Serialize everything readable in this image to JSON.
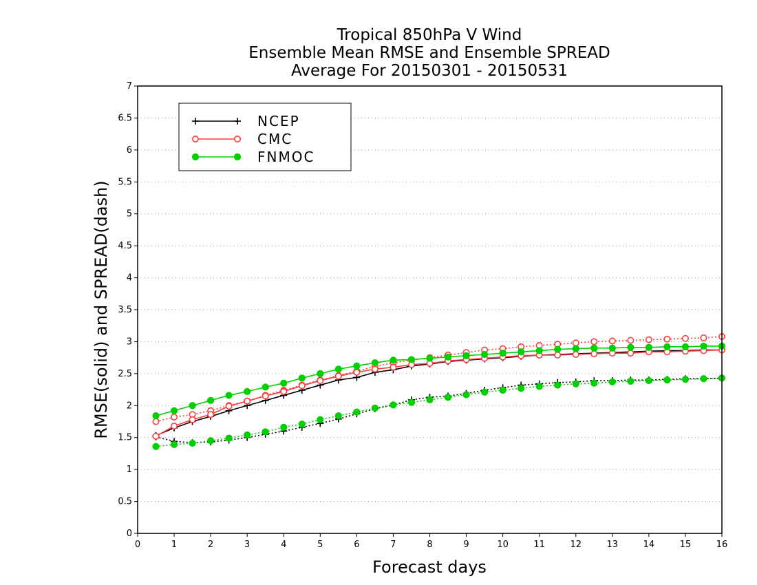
{
  "chart_data": {
    "type": "line",
    "title_lines": [
      "Tropical 850hPa V Wind",
      "Ensemble Mean RMSE and Ensemble SPREAD",
      "Average For 20150301 - 20150531"
    ],
    "xlabel": "Forecast days",
    "ylabel": "RMSE(solid) and SPREAD(dash)",
    "xlim": [
      0,
      16
    ],
    "ylim": [
      0,
      7
    ],
    "x_ticks": [
      0,
      1,
      2,
      3,
      4,
      5,
      6,
      7,
      8,
      9,
      10,
      11,
      12,
      13,
      14,
      15,
      16
    ],
    "y_ticks": [
      0,
      0.5,
      1,
      1.5,
      2,
      2.5,
      3,
      3.5,
      4,
      4.5,
      5,
      5.5,
      6,
      6.5,
      7
    ],
    "y_tick_labels": [
      "0",
      "0.5",
      "1",
      "1.5",
      "2",
      "2.5",
      "3",
      "3.5",
      "4",
      "4.5",
      "5",
      "5.5",
      "6",
      "6.5",
      "7"
    ],
    "grid": "horizontal dotted",
    "legend_position": "top-left",
    "x": [
      0.5,
      1.0,
      1.5,
      2.0,
      2.5,
      3.0,
      3.5,
      4.0,
      4.5,
      5.0,
      5.5,
      6.0,
      6.5,
      7.0,
      7.5,
      8.0,
      8.5,
      9.0,
      9.5,
      10.0,
      10.5,
      11.0,
      11.5,
      12.0,
      12.5,
      13.0,
      13.5,
      14.0,
      14.5,
      15.0,
      15.5,
      16.0
    ],
    "series": [
      {
        "name": "NCEP",
        "color": "#000000",
        "marker": "plus",
        "rmse": [
          1.53,
          1.65,
          1.75,
          1.83,
          1.92,
          2.0,
          2.08,
          2.16,
          2.24,
          2.32,
          2.4,
          2.44,
          2.52,
          2.56,
          2.62,
          2.65,
          2.69,
          2.71,
          2.73,
          2.75,
          2.77,
          2.79,
          2.8,
          2.81,
          2.82,
          2.83,
          2.84,
          2.85,
          2.86,
          2.86,
          2.87,
          2.87
        ],
        "spread": [
          1.51,
          1.44,
          1.42,
          1.43,
          1.46,
          1.5,
          1.55,
          1.6,
          1.66,
          1.72,
          1.79,
          1.87,
          1.95,
          2.01,
          2.09,
          2.13,
          2.15,
          2.19,
          2.24,
          2.28,
          2.32,
          2.34,
          2.36,
          2.37,
          2.39,
          2.39,
          2.4,
          2.4,
          2.41,
          2.42,
          2.42,
          2.43
        ]
      },
      {
        "name": "CMC",
        "color": "#ff3b3b",
        "marker": "open-circle",
        "rmse": [
          1.52,
          1.68,
          1.78,
          1.86,
          1.99,
          2.07,
          2.15,
          2.22,
          2.31,
          2.39,
          2.46,
          2.52,
          2.57,
          2.6,
          2.64,
          2.66,
          2.7,
          2.72,
          2.74,
          2.76,
          2.78,
          2.79,
          2.79,
          2.8,
          2.81,
          2.82,
          2.82,
          2.84,
          2.84,
          2.85,
          2.86,
          2.87
        ],
        "spread": [
          1.75,
          1.82,
          1.86,
          1.92,
          2.0,
          2.07,
          2.16,
          2.24,
          2.32,
          2.4,
          2.47,
          2.54,
          2.61,
          2.67,
          2.71,
          2.75,
          2.79,
          2.83,
          2.87,
          2.89,
          2.92,
          2.94,
          2.96,
          2.98,
          3.0,
          3.01,
          3.02,
          3.03,
          3.04,
          3.05,
          3.06,
          3.08
        ]
      },
      {
        "name": "FNMOC",
        "color": "#00d000",
        "marker": "filled-circle",
        "rmse": [
          1.84,
          1.92,
          2.0,
          2.08,
          2.16,
          2.22,
          2.29,
          2.35,
          2.43,
          2.5,
          2.57,
          2.62,
          2.67,
          2.71,
          2.72,
          2.74,
          2.76,
          2.78,
          2.8,
          2.82,
          2.84,
          2.86,
          2.88,
          2.89,
          2.9,
          2.9,
          2.91,
          2.91,
          2.92,
          2.92,
          2.93,
          2.93
        ],
        "spread": [
          1.36,
          1.39,
          1.41,
          1.45,
          1.49,
          1.54,
          1.59,
          1.66,
          1.71,
          1.78,
          1.84,
          1.9,
          1.96,
          2.01,
          2.05,
          2.09,
          2.13,
          2.17,
          2.21,
          2.24,
          2.27,
          2.3,
          2.32,
          2.34,
          2.35,
          2.37,
          2.38,
          2.39,
          2.4,
          2.41,
          2.42,
          2.43
        ]
      }
    ]
  }
}
